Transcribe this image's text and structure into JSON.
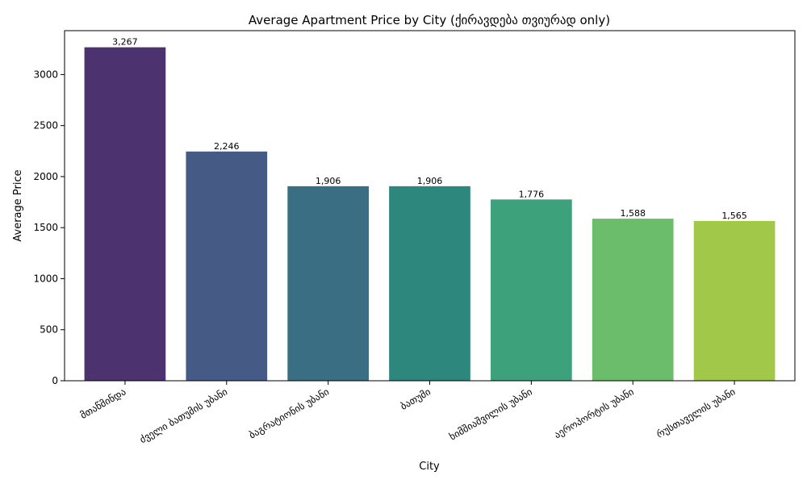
{
  "chart_data": {
    "type": "bar",
    "title": "Average Apartment Price by City (ქირავდება თვიურად only)",
    "xlabel": "City",
    "ylabel": "Average Price",
    "categories": [
      "მთაწმინდა",
      "ძველი ბათუმის უბანი",
      "ბაგრატიონის უბანი",
      "ბათუმი",
      "ხიმშიაშვილის უბანი",
      "აეროპორტის უბანი",
      "რუსთაველის უბანი"
    ],
    "values": [
      3267,
      2246,
      1906,
      1906,
      1776,
      1588,
      1565
    ],
    "value_labels": [
      "3,267",
      "2,246",
      "1,906",
      "1,906",
      "1,776",
      "1,588",
      "1,565"
    ],
    "colors": [
      "#4c336f",
      "#455a85",
      "#3a6f83",
      "#2e877d",
      "#3da27b",
      "#6bbd6b",
      "#a2c84a"
    ],
    "yticks": [
      0,
      500,
      1000,
      1500,
      2000,
      2500,
      3000
    ],
    "ylim": [
      0,
      3430
    ],
    "grid": false,
    "legend": "none"
  }
}
